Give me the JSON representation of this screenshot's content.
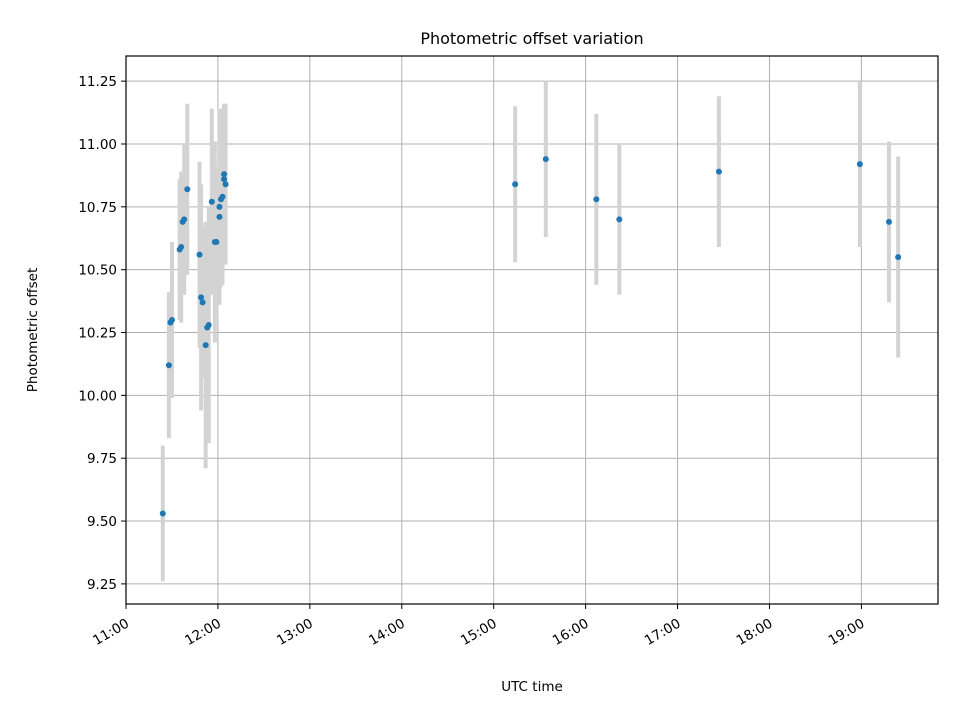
{
  "chart_data": {
    "type": "scatter",
    "title": "Photometric offset variation",
    "xlabel": "UTC time",
    "ylabel": "Photometric offset",
    "x_tick_labels": [
      "11:00",
      "12:00",
      "13:00",
      "14:00",
      "15:00",
      "16:00",
      "17:00",
      "18:00",
      "19:00"
    ],
    "y_tick_labels": [
      "9.25",
      "9.50",
      "9.75",
      "10.00",
      "10.25",
      "10.50",
      "10.75",
      "11.00",
      "11.25"
    ],
    "x_ticks": [
      "11:00",
      "12:00",
      "13:00",
      "14:00",
      "15:00",
      "16:00",
      "17:00",
      "18:00",
      "19:00"
    ],
    "y_ticks": [
      9.25,
      9.5,
      9.75,
      10.0,
      10.25,
      10.5,
      10.75,
      11.0,
      11.25
    ],
    "xlim": [
      "11:00",
      "19:50"
    ],
    "ylim": [
      9.17,
      11.35
    ],
    "grid": true,
    "point_color": "#1f77b4",
    "errorbar_color": "#d3d3d3",
    "points": [
      {
        "x": "11:24",
        "y": 9.53,
        "err": 0.27
      },
      {
        "x": "11:28",
        "y": 10.12,
        "err": 0.29
      },
      {
        "x": "11:29",
        "y": 10.29,
        "err": 0.12
      },
      {
        "x": "11:30",
        "y": 10.3,
        "err": 0.31
      },
      {
        "x": "11:35",
        "y": 10.58,
        "err": 0.28
      },
      {
        "x": "11:36",
        "y": 10.59,
        "err": 0.3
      },
      {
        "x": "11:37",
        "y": 10.69,
        "err": 0.18
      },
      {
        "x": "11:38",
        "y": 10.7,
        "err": 0.3
      },
      {
        "x": "11:40",
        "y": 10.82,
        "err": 0.34
      },
      {
        "x": "11:48",
        "y": 10.56,
        "err": 0.37
      },
      {
        "x": "11:49",
        "y": 10.39,
        "err": 0.45
      },
      {
        "x": "11:50",
        "y": 10.37,
        "err": 0.3
      },
      {
        "x": "11:52",
        "y": 10.2,
        "err": 0.49
      },
      {
        "x": "11:53",
        "y": 10.27,
        "err": 0.36
      },
      {
        "x": "11:54",
        "y": 10.28,
        "err": 0.47
      },
      {
        "x": "11:56",
        "y": 10.77,
        "err": 0.37
      },
      {
        "x": "11:58",
        "y": 10.61,
        "err": 0.4
      },
      {
        "x": "11:59",
        "y": 10.61,
        "err": 0.3
      },
      {
        "x": "12:01",
        "y": 10.71,
        "err": 0.3
      },
      {
        "x": "12:01",
        "y": 10.75,
        "err": 0.39
      },
      {
        "x": "12:02",
        "y": 10.78,
        "err": 0.35
      },
      {
        "x": "12:03",
        "y": 10.79,
        "err": 0.35
      },
      {
        "x": "12:04",
        "y": 10.86,
        "err": 0.3
      },
      {
        "x": "12:04",
        "y": 10.88,
        "err": 0.28
      },
      {
        "x": "12:05",
        "y": 10.84,
        "err": 0.32
      },
      {
        "x": "15:14",
        "y": 10.84,
        "err": 0.31
      },
      {
        "x": "15:34",
        "y": 10.94,
        "err": 0.31
      },
      {
        "x": "16:07",
        "y": 10.78,
        "err": 0.34
      },
      {
        "x": "16:22",
        "y": 10.7,
        "err": 0.3
      },
      {
        "x": "17:27",
        "y": 10.89,
        "err": 0.3
      },
      {
        "x": "18:59",
        "y": 10.92,
        "err": 0.33
      },
      {
        "x": "19:18",
        "y": 10.69,
        "err": 0.32
      },
      {
        "x": "19:24",
        "y": 10.55,
        "err": 0.4
      }
    ]
  }
}
